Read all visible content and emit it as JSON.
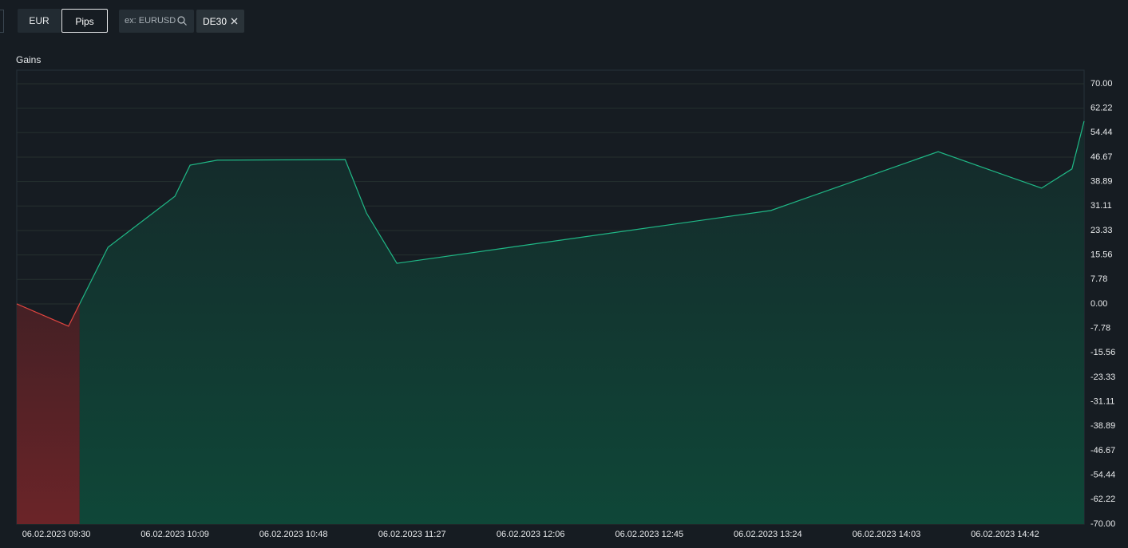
{
  "toolbar": {
    "buttons": [
      "EUR",
      "Pips"
    ],
    "search_placeholder": "ex: EURUSD",
    "chip": "DE30"
  },
  "chart_data": {
    "type": "area",
    "title": "Gains",
    "x": [
      "06.02.2023 09:17",
      "06.02.2023 09:34",
      "06.02.2023 09:47",
      "06.02.2023 10:09",
      "06.02.2023 10:14",
      "06.02.2023 10:23",
      "06.02.2023 11:05",
      "06.02.2023 11:12",
      "06.02.2023 11:22",
      "06.02.2023 13:25",
      "06.02.2023 14:20",
      "06.02.2023 14:54",
      "06.02.2023 15:04",
      "06.02.2023 15:08"
    ],
    "values": [
      0,
      -7.1,
      18.0,
      34.2,
      44.1,
      45.7,
      45.9,
      28.9,
      12.9,
      29.7,
      48.4,
      36.8,
      42.9,
      58.1
    ],
    "xlim": [
      "06.02.2023 09:17",
      "06.02.2023 15:08"
    ],
    "xticks": [
      "06.02.2023 09:30",
      "06.02.2023 10:09",
      "06.02.2023 10:48",
      "06.02.2023 11:27",
      "06.02.2023 12:06",
      "06.02.2023 12:45",
      "06.02.2023 13:24",
      "06.02.2023 14:03",
      "06.02.2023 14:42"
    ],
    "ylim": [
      -70,
      74.3
    ],
    "yticks": [
      {
        "value": 70,
        "label": "70.00"
      },
      {
        "value": 62.22,
        "label": "62.22"
      },
      {
        "value": 54.44,
        "label": "54.44"
      },
      {
        "value": 46.67,
        "label": "46.67"
      },
      {
        "value": 38.89,
        "label": "38.89"
      },
      {
        "value": 31.11,
        "label": "31.11"
      },
      {
        "value": 23.33,
        "label": "23.33"
      },
      {
        "value": 15.56,
        "label": "15.56"
      },
      {
        "value": 7.78,
        "label": "7.78"
      },
      {
        "value": 0,
        "label": "0.00"
      },
      {
        "value": -7.78,
        "label": "-7.78"
      },
      {
        "value": -15.56,
        "label": "-15.56"
      },
      {
        "value": -23.33,
        "label": "-23.33"
      },
      {
        "value": -31.11,
        "label": "-31.11"
      },
      {
        "value": -38.89,
        "label": "-38.89"
      },
      {
        "value": -46.67,
        "label": "-46.67"
      },
      {
        "value": -54.44,
        "label": "-54.44"
      },
      {
        "value": -62.22,
        "label": "-62.22"
      },
      {
        "value": -70,
        "label": "-70.00"
      }
    ],
    "color": "#1fb886",
    "negative_color": "#e0443f",
    "grid": true
  }
}
